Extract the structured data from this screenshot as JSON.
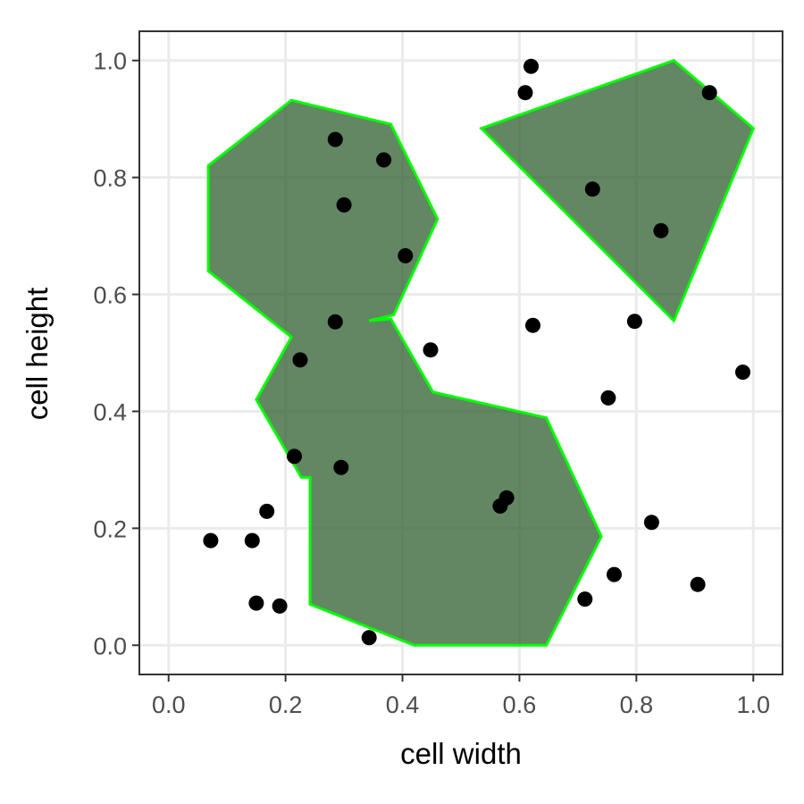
{
  "chart_data": {
    "type": "scatter",
    "xlabel": "cell width",
    "ylabel": "cell height",
    "xlim": [
      -0.05,
      1.05
    ],
    "ylim": [
      -0.05,
      1.05
    ],
    "x_ticks": [
      0.0,
      0.2,
      0.4,
      0.6,
      0.8,
      1.0
    ],
    "y_ticks": [
      0.0,
      0.2,
      0.4,
      0.6,
      0.8,
      1.0
    ],
    "x_tick_labels": [
      "0.0",
      "0.2",
      "0.4",
      "0.6",
      "0.8",
      "1.0"
    ],
    "y_tick_labels": [
      "0.0",
      "0.2",
      "0.4",
      "0.6",
      "0.8",
      "1.0"
    ],
    "grid": true,
    "colors": {
      "points": "#000000",
      "region_fill": "#2f5f2f",
      "region_stroke": "#00ff00"
    },
    "points": [
      {
        "x": 0.62,
        "y": 0.99
      },
      {
        "x": 0.61,
        "y": 0.945
      },
      {
        "x": 0.925,
        "y": 0.945
      },
      {
        "x": 0.285,
        "y": 0.865
      },
      {
        "x": 0.368,
        "y": 0.83
      },
      {
        "x": 0.725,
        "y": 0.78
      },
      {
        "x": 0.3,
        "y": 0.753
      },
      {
        "x": 0.842,
        "y": 0.709
      },
      {
        "x": 0.405,
        "y": 0.666
      },
      {
        "x": 0.285,
        "y": 0.553
      },
      {
        "x": 0.623,
        "y": 0.547
      },
      {
        "x": 0.797,
        "y": 0.554
      },
      {
        "x": 0.448,
        "y": 0.505
      },
      {
        "x": 0.225,
        "y": 0.488
      },
      {
        "x": 0.982,
        "y": 0.467
      },
      {
        "x": 0.752,
        "y": 0.423
      },
      {
        "x": 0.215,
        "y": 0.323
      },
      {
        "x": 0.295,
        "y": 0.304
      },
      {
        "x": 0.578,
        "y": 0.252
      },
      {
        "x": 0.567,
        "y": 0.238
      },
      {
        "x": 0.168,
        "y": 0.229
      },
      {
        "x": 0.826,
        "y": 0.21
      },
      {
        "x": 0.072,
        "y": 0.179
      },
      {
        "x": 0.143,
        "y": 0.179
      },
      {
        "x": 0.762,
        "y": 0.121
      },
      {
        "x": 0.905,
        "y": 0.104
      },
      {
        "x": 0.712,
        "y": 0.079
      },
      {
        "x": 0.15,
        "y": 0.072
      },
      {
        "x": 0.19,
        "y": 0.067
      },
      {
        "x": 0.343,
        "y": 0.013
      }
    ],
    "regions": [
      {
        "vertices": [
          {
            "x": 0.21,
            "y": 0.932
          },
          {
            "x": 0.38,
            "y": 0.891
          },
          {
            "x": 0.46,
            "y": 0.729
          },
          {
            "x": 0.385,
            "y": 0.565
          },
          {
            "x": 0.343,
            "y": 0.555
          },
          {
            "x": 0.38,
            "y": 0.558
          },
          {
            "x": 0.452,
            "y": 0.433
          },
          {
            "x": 0.646,
            "y": 0.389
          },
          {
            "x": 0.74,
            "y": 0.186
          },
          {
            "x": 0.646,
            "y": 0.0
          },
          {
            "x": 0.42,
            "y": 0.0
          },
          {
            "x": 0.242,
            "y": 0.07
          },
          {
            "x": 0.242,
            "y": 0.287
          },
          {
            "x": 0.227,
            "y": 0.287
          },
          {
            "x": 0.15,
            "y": 0.42
          },
          {
            "x": 0.21,
            "y": 0.527
          },
          {
            "x": 0.068,
            "y": 0.64
          },
          {
            "x": 0.068,
            "y": 0.82
          }
        ]
      },
      {
        "vertices": [
          {
            "x": 0.535,
            "y": 0.884
          },
          {
            "x": 0.864,
            "y": 1.0
          },
          {
            "x": 1.0,
            "y": 0.884
          },
          {
            "x": 0.864,
            "y": 0.555
          }
        ]
      }
    ]
  }
}
